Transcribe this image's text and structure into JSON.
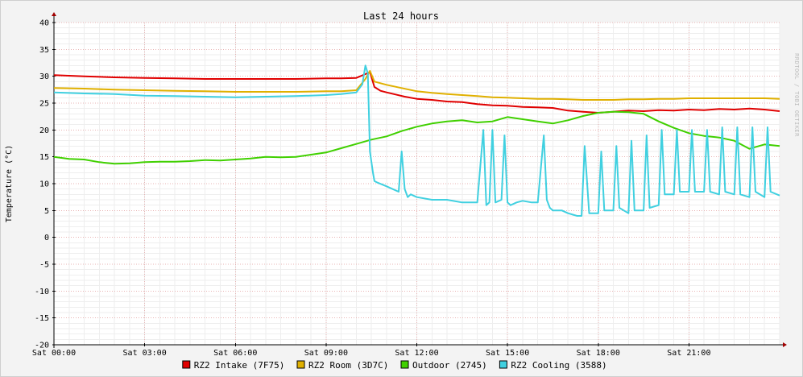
{
  "chart_data": {
    "type": "line",
    "title": "Last 24 hours",
    "ylabel": "Temperature (°C)",
    "xlabel": "",
    "watermark": "RRDTOOL / TOBI OETIKER",
    "xlim": [
      0,
      24
    ],
    "ylim": [
      -20,
      40
    ],
    "x_ticks": [
      {
        "value": 0,
        "label": "Sat 00:00"
      },
      {
        "value": 3,
        "label": "Sat 03:00"
      },
      {
        "value": 6,
        "label": "Sat 06:00"
      },
      {
        "value": 9,
        "label": "Sat 09:00"
      },
      {
        "value": 12,
        "label": "Sat 12:00"
      },
      {
        "value": 15,
        "label": "Sat 15:00"
      },
      {
        "value": 18,
        "label": "Sat 18:00"
      },
      {
        "value": 21,
        "label": "Sat 21:00"
      }
    ],
    "y_ticks": [
      40,
      35,
      30,
      25,
      20,
      15,
      10,
      5,
      0,
      -5,
      -10,
      -15,
      -20
    ],
    "grid": true,
    "background": "#ffffff",
    "grid_color": "#e9b3b3",
    "legend_position": "bottom",
    "series": [
      {
        "name": "RZ2 Intake (7F75)",
        "color": "#e00000",
        "x": [
          0,
          1,
          2,
          3,
          4,
          5,
          6,
          7,
          8,
          9,
          9.5,
          10,
          10.3,
          10.45,
          10.6,
          10.8,
          11,
          11.3,
          11.6,
          12,
          12.5,
          13,
          13.5,
          14,
          14.5,
          15,
          15.5,
          16,
          16.5,
          17,
          17.5,
          18,
          18.5,
          19,
          19.5,
          20,
          20.5,
          21,
          21.5,
          22,
          22.5,
          23,
          23.5,
          24
        ],
        "y": [
          30.2,
          30.0,
          29.8,
          29.7,
          29.6,
          29.5,
          29.5,
          29.5,
          29.5,
          29.6,
          29.6,
          29.7,
          30.4,
          30.8,
          28.0,
          27.3,
          27.0,
          26.6,
          26.2,
          25.8,
          25.6,
          25.3,
          25.2,
          24.8,
          24.6,
          24.5,
          24.3,
          24.2,
          24.1,
          23.6,
          23.4,
          23.2,
          23.4,
          23.6,
          23.5,
          23.7,
          23.6,
          23.8,
          23.7,
          23.9,
          23.8,
          24.0,
          23.8,
          23.5
        ]
      },
      {
        "name": "RZ2 Room (3D7C)",
        "color": "#e0b000",
        "x": [
          0,
          1,
          2,
          3,
          4,
          5,
          6,
          7,
          8,
          9,
          9.5,
          10,
          10.3,
          10.45,
          10.6,
          11,
          11.5,
          12,
          12.5,
          13,
          13.5,
          14,
          14.5,
          15,
          15.5,
          16,
          16.5,
          17,
          17.5,
          18,
          18.5,
          19,
          19.5,
          20,
          20.5,
          21,
          21.5,
          22,
          22.5,
          23,
          23.5,
          24
        ],
        "y": [
          27.8,
          27.7,
          27.5,
          27.4,
          27.3,
          27.2,
          27.1,
          27.1,
          27.1,
          27.2,
          27.2,
          27.4,
          29.5,
          31.0,
          29.0,
          28.4,
          27.8,
          27.2,
          26.9,
          26.7,
          26.5,
          26.3,
          26.1,
          26.0,
          25.9,
          25.8,
          25.8,
          25.7,
          25.6,
          25.6,
          25.6,
          25.7,
          25.7,
          25.8,
          25.8,
          25.9,
          25.9,
          25.9,
          25.9,
          25.9,
          25.9,
          25.8
        ]
      },
      {
        "name": "Outdoor (2745)",
        "color": "#40d000",
        "x": [
          0,
          0.5,
          1,
          1.5,
          2,
          2.5,
          3,
          3.5,
          4,
          4.5,
          5,
          5.5,
          6,
          6.5,
          7,
          7.5,
          8,
          8.5,
          9,
          9.5,
          10,
          10.5,
          11,
          11.5,
          12,
          12.5,
          13,
          13.5,
          14,
          14.5,
          15,
          15.5,
          16,
          16.5,
          17,
          17.5,
          18,
          18.5,
          19,
          19.5,
          20,
          20.5,
          21,
          21.5,
          22,
          22.5,
          23,
          23.5,
          24
        ],
        "y": [
          15.0,
          14.6,
          14.5,
          14.0,
          13.7,
          13.8,
          14.0,
          14.1,
          14.1,
          14.2,
          14.4,
          14.3,
          14.5,
          14.7,
          15.0,
          14.9,
          15.0,
          15.4,
          15.8,
          16.6,
          17.4,
          18.2,
          18.8,
          19.8,
          20.6,
          21.2,
          21.6,
          21.8,
          21.4,
          21.6,
          22.4,
          22.0,
          21.6,
          21.2,
          21.8,
          22.6,
          23.2,
          23.4,
          23.3,
          23.0,
          21.6,
          20.4,
          19.4,
          18.9,
          18.6,
          18.0,
          16.5,
          17.3,
          17.0
        ]
      },
      {
        "name": "RZ2 Cooling (3588)",
        "color": "#40d0e0",
        "x": [
          0,
          1,
          2,
          3,
          4,
          5,
          6,
          7,
          8,
          9,
          9.5,
          10,
          10.2,
          10.3,
          10.38,
          10.45,
          10.55,
          10.6,
          10.7,
          11,
          11.2,
          11.4,
          11.5,
          11.6,
          11.7,
          11.8,
          12,
          12.5,
          13,
          13.5,
          14,
          14.2,
          14.3,
          14.4,
          14.5,
          14.6,
          14.8,
          14.9,
          15.0,
          15.1,
          15.3,
          15.5,
          15.8,
          16,
          16.2,
          16.3,
          16.4,
          16.5,
          16.8,
          17,
          17.3,
          17.45,
          17.55,
          17.7,
          18.0,
          18.1,
          18.2,
          18.5,
          18.6,
          18.7,
          19.0,
          19.1,
          19.2,
          19.5,
          19.6,
          19.7,
          20.0,
          20.1,
          20.2,
          20.5,
          20.6,
          20.7,
          21.0,
          21.1,
          21.2,
          21.5,
          21.6,
          21.7,
          22.0,
          22.1,
          22.2,
          22.5,
          22.6,
          22.7,
          23.0,
          23.1,
          23.2,
          23.5,
          23.6,
          23.7,
          24
        ],
        "y": [
          27.0,
          26.8,
          26.7,
          26.4,
          26.3,
          26.2,
          26.1,
          26.2,
          26.3,
          26.5,
          26.7,
          27.0,
          28.5,
          32.0,
          30.5,
          16.0,
          12.0,
          10.5,
          10.2,
          9.5,
          9.0,
          8.5,
          16.0,
          9.0,
          7.5,
          8.0,
          7.5,
          7.0,
          7.0,
          6.5,
          6.5,
          20.0,
          6.0,
          6.5,
          20.0,
          6.5,
          7.0,
          19.0,
          6.5,
          6.0,
          6.5,
          6.8,
          6.5,
          6.5,
          19.0,
          7.0,
          5.5,
          5.0,
          5.0,
          4.5,
          4.0,
          4.0,
          17.0,
          4.5,
          4.5,
          16.0,
          5.0,
          5.0,
          17.0,
          5.5,
          4.5,
          18.0,
          5.0,
          5.0,
          19.0,
          5.5,
          6.0,
          20.0,
          8.0,
          8.0,
          20.0,
          8.5,
          8.5,
          20.0,
          8.5,
          8.5,
          20.0,
          8.5,
          8.0,
          20.5,
          8.5,
          8.0,
          20.5,
          8.0,
          7.5,
          20.5,
          8.5,
          7.5,
          20.5,
          8.5,
          7.8
        ]
      }
    ]
  }
}
